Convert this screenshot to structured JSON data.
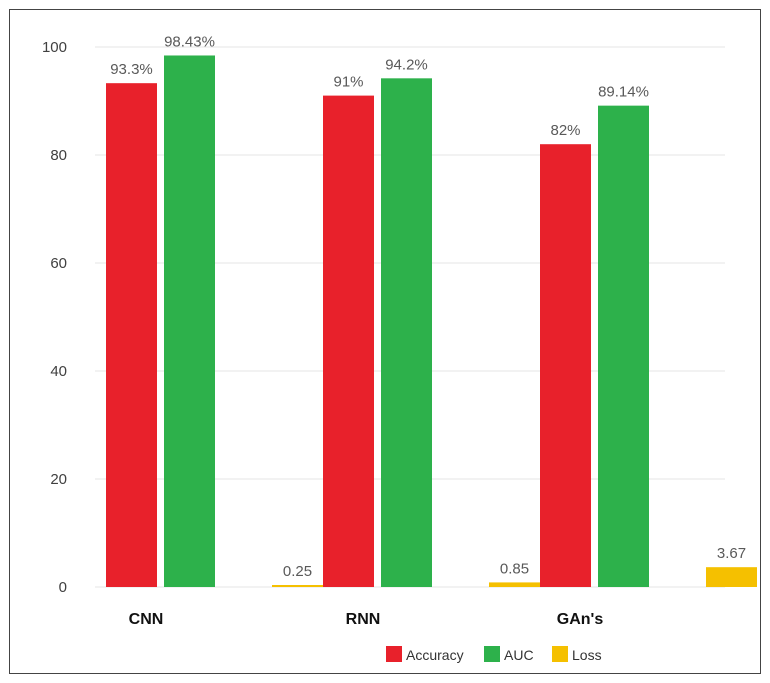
{
  "chart_data": {
    "type": "bar",
    "categories": [
      "CNN",
      "RNN",
      "GAn's"
    ],
    "series": [
      {
        "name": "Accuracy",
        "values": [
          93.3,
          91,
          82
        ],
        "labels": [
          "93.3%",
          "91%",
          "82%"
        ],
        "color": "#e8212b"
      },
      {
        "name": "AUC",
        "values": [
          98.43,
          94.2,
          89.14
        ],
        "labels": [
          "98.43%",
          "94.2%",
          "89.14%"
        ],
        "color": "#2db14b"
      },
      {
        "name": "Loss",
        "values": [
          0.25,
          0.85,
          3.67
        ],
        "labels": [
          "0.25",
          "0.85",
          "3.67"
        ],
        "color": "#f5c000"
      }
    ],
    "ylim": [
      0,
      100
    ],
    "yticks": [
      0,
      20,
      40,
      60,
      80,
      100
    ],
    "grid": true,
    "legend": "bottom-right"
  }
}
